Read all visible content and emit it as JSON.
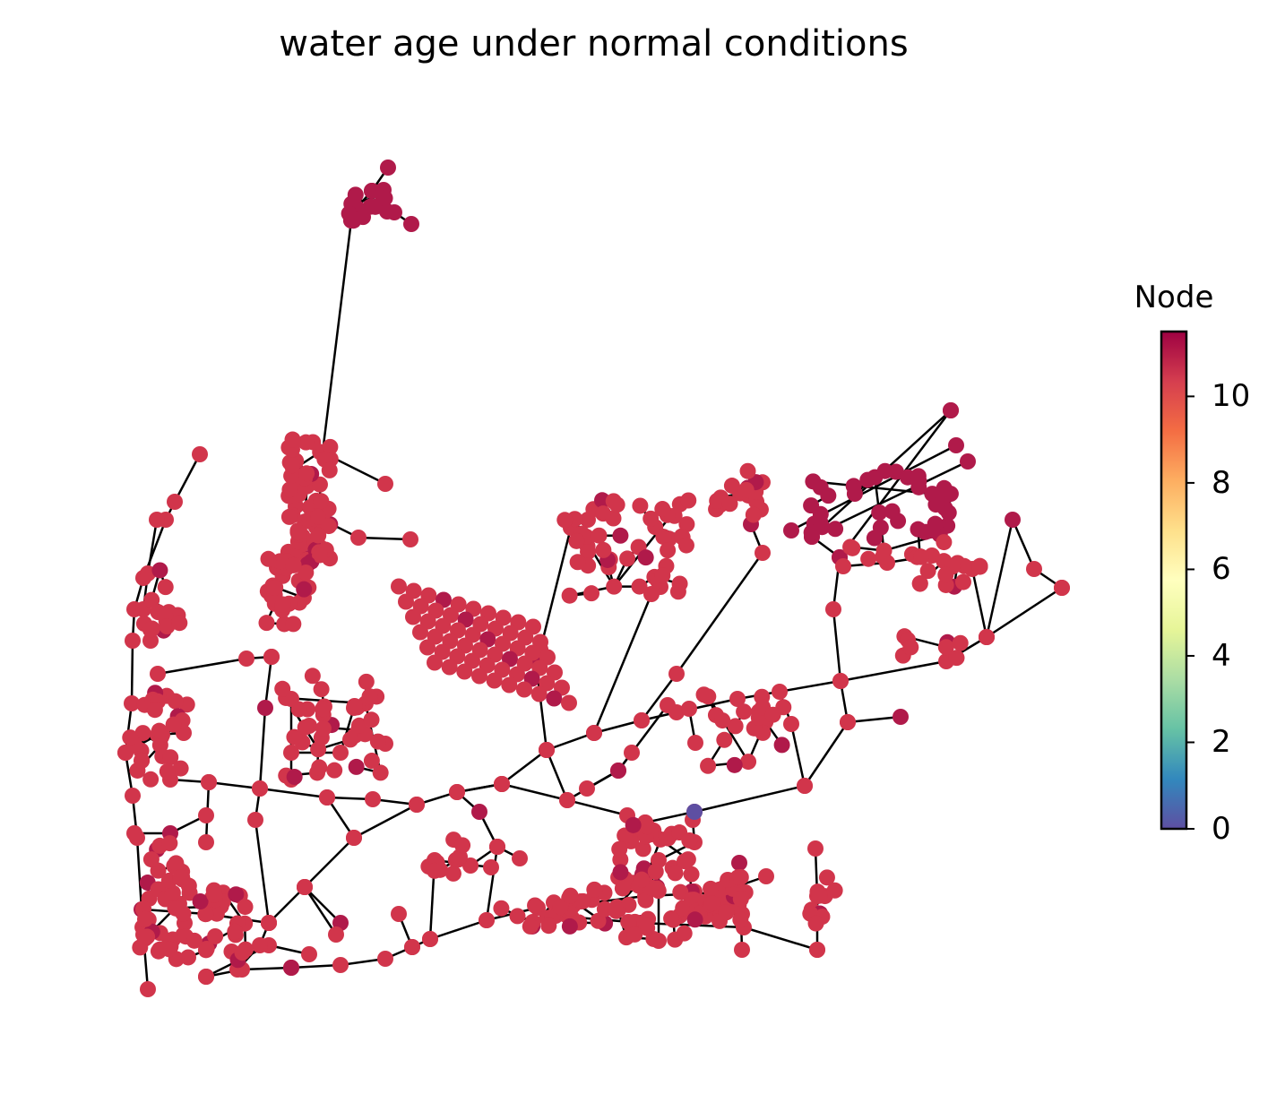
{
  "title": "water age under normal conditions",
  "colorbar": {
    "label": "Node",
    "ticks": [
      "0",
      "2",
      "4",
      "6",
      "8",
      "10"
    ],
    "min": 0,
    "max": 11.5,
    "colormap": "Spectral_r"
  },
  "colors": {
    "edge": "#000000",
    "node_high": "#b01a4a",
    "node_typical": "#d1354b",
    "node_low": "#5e4fa2"
  }
}
